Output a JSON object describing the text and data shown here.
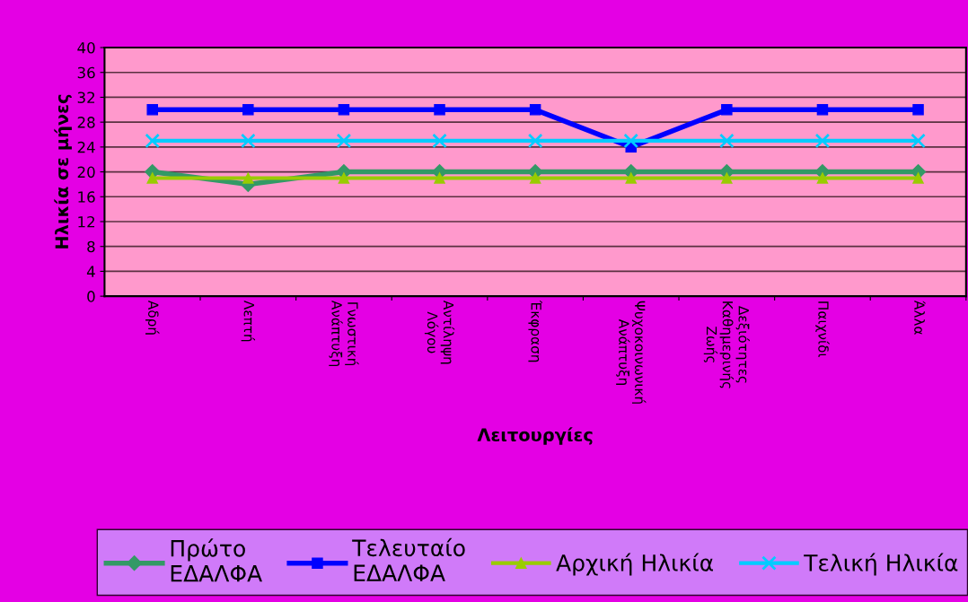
{
  "chart_data": {
    "type": "line",
    "xlabel": "Λειτουργίες",
    "ylabel": "Ηλικία σε μήνες",
    "categories": [
      "Αδρή",
      "Λεπτή",
      "Γνωστική\nΑνάπτυξη",
      "Αντίληψη\nΛόγου",
      "Έκφραση",
      "Ψυχοκοινωνική\nΑνάπτυξη",
      "Δεξιότητες\nΚαθημερινής\nΖωής",
      "Παιχνίδι",
      "Άλλα"
    ],
    "series": [
      {
        "name": "Πρώτο\nΕΔΑΛΦΑ",
        "color": "#339966",
        "marker": "diamond",
        "values": [
          20,
          18,
          20,
          20,
          20,
          20,
          20,
          20,
          20
        ]
      },
      {
        "name": "Τελευταίο\nΕΔΑΛΦΑ",
        "color": "#0000ff",
        "marker": "square",
        "values": [
          30,
          30,
          30,
          30,
          30,
          24,
          30,
          30,
          30
        ]
      },
      {
        "name": "Αρχική Ηλικία",
        "color": "#99cc00",
        "marker": "triangle",
        "values": [
          19,
          19,
          19,
          19,
          19,
          19,
          19,
          19,
          19
        ]
      },
      {
        "name": "Τελική Ηλικία",
        "color": "#00ccff",
        "marker": "cross",
        "values": [
          25,
          25,
          25,
          25,
          25,
          25,
          25,
          25,
          25
        ]
      }
    ],
    "ylim": [
      0,
      40
    ],
    "yticks": [
      0,
      4,
      8,
      12,
      16,
      20,
      24,
      28,
      32,
      36,
      40
    ],
    "grid": "y",
    "legend": "bottom"
  }
}
